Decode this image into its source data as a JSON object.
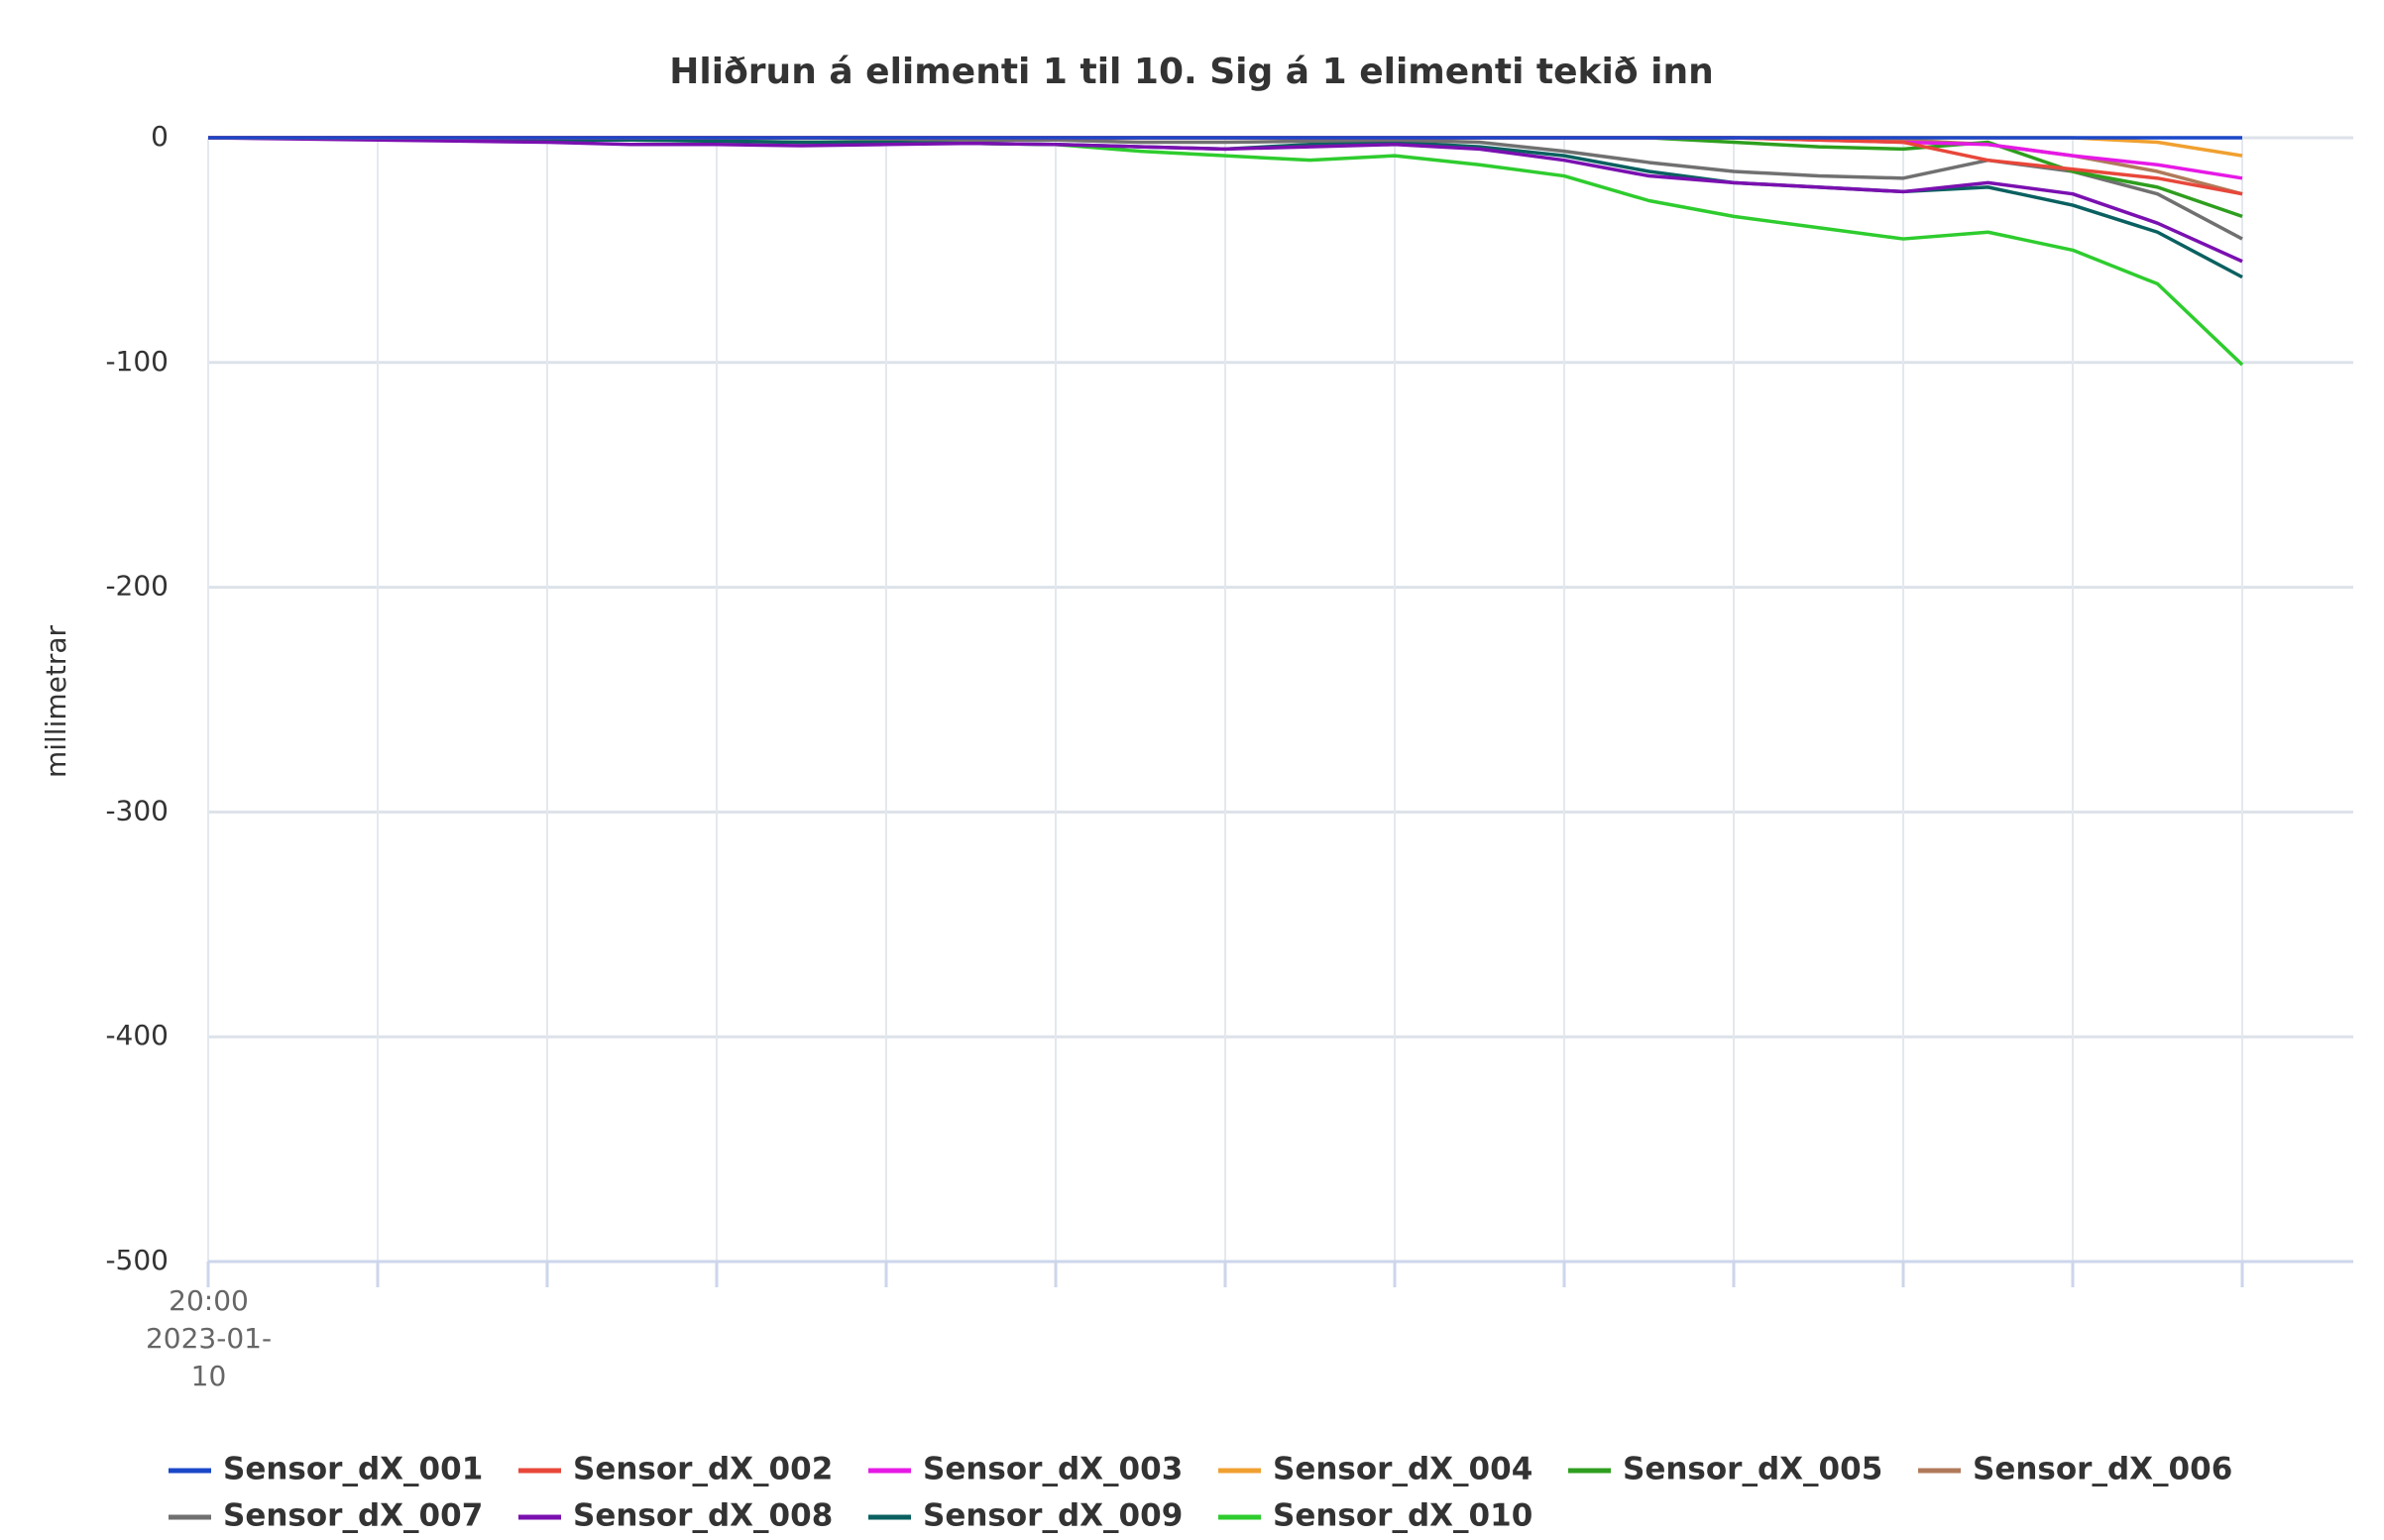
{
  "chart_data": {
    "type": "line",
    "title": "Hliðrun á elimenti 1 til 10. Sig á 1 elimenti tekið inn",
    "y_label": "millimetrar",
    "categories": [
      "20:00 2023-01-10",
      null,
      null,
      null,
      null,
      null,
      null,
      null,
      null,
      null,
      null,
      null,
      null,
      null,
      null,
      null,
      null,
      null,
      null,
      null,
      null,
      null,
      null,
      null,
      null
    ],
    "ylim": [
      -500,
      0
    ],
    "yticks": [
      0,
      -100,
      -200,
      -300,
      -400,
      -500
    ],
    "grid": true,
    "series": [
      {
        "name": "Sensor_dX_001",
        "color": "#1a47c8",
        "values": [
          0,
          0,
          0,
          0,
          0,
          0,
          0,
          0,
          0,
          0,
          0,
          0,
          0,
          0,
          0,
          0,
          0,
          0,
          0,
          0,
          0,
          0,
          0,
          0,
          0
        ]
      },
      {
        "name": "Sensor_dX_002",
        "color": "#e8473a",
        "values": [
          0,
          0,
          0,
          0,
          0,
          0,
          0,
          0,
          0,
          0,
          0,
          0,
          0,
          0,
          0,
          0,
          0,
          0,
          0,
          -1,
          -2,
          -10,
          -14,
          -18,
          -25
        ]
      },
      {
        "name": "Sensor_dX_003",
        "color": "#e619e6",
        "values": [
          0,
          0,
          0,
          0,
          0,
          0,
          0,
          0,
          0,
          0,
          0,
          0,
          0,
          0,
          0,
          0,
          0,
          0,
          0,
          -1,
          -2,
          -3,
          -8,
          -12,
          -18
        ]
      },
      {
        "name": "Sensor_dX_004",
        "color": "#f0a030",
        "values": [
          0,
          0,
          0,
          0,
          0,
          0,
          0,
          0,
          0,
          0,
          0,
          0,
          0,
          0,
          0,
          0,
          0,
          0,
          0,
          0,
          0,
          0,
          0,
          -2,
          -8
        ]
      },
      {
        "name": "Sensor_dX_005",
        "color": "#2e9e1e",
        "values": [
          0,
          0,
          0,
          0,
          0,
          0,
          0,
          0,
          0,
          0,
          0,
          0,
          0,
          0,
          0,
          0,
          0,
          0,
          -2,
          -4,
          -5,
          -2,
          -15,
          -22,
          -35
        ]
      },
      {
        "name": "Sensor_dX_006",
        "color": "#b07a5a",
        "values": [
          0,
          0,
          0,
          0,
          0,
          0,
          0,
          0,
          0,
          0,
          0,
          0,
          0,
          0,
          0,
          0,
          0,
          0,
          0,
          0,
          -1,
          -3,
          -8,
          -15,
          -25
        ]
      },
      {
        "name": "Sensor_dX_007",
        "color": "#707070",
        "values": [
          0,
          0,
          0,
          0,
          0,
          0,
          0,
          0,
          -0.5,
          -1,
          -1,
          -2,
          -2,
          -1.5,
          -1,
          -2,
          -6,
          -11,
          -15,
          -17,
          -18,
          -10,
          -15,
          -25,
          -45
        ]
      },
      {
        "name": "Sensor_dX_008",
        "color": "#7a10b0",
        "values": [
          0,
          -0.5,
          -1,
          -1.5,
          -2,
          -3,
          -3,
          -3.5,
          -3,
          -2.5,
          -3,
          -4,
          -5,
          -4,
          -3,
          -5,
          -10,
          -17,
          -20,
          -22,
          -24,
          -20,
          -25,
          -38,
          -55
        ]
      },
      {
        "name": "Sensor_dX_009",
        "color": "#0a6060",
        "values": [
          0,
          0,
          0,
          -0.5,
          -1,
          -1,
          -1.5,
          -2,
          -2,
          -2.5,
          -3,
          -4,
          -5,
          -3,
          -2,
          -4,
          -8,
          -15,
          -20,
          -22,
          -24,
          -22,
          -30,
          -42,
          -62
        ]
      },
      {
        "name": "Sensor_dX_010",
        "color": "#2ecc2e",
        "values": [
          0,
          0,
          0,
          -0.5,
          -1,
          -1,
          -1.5,
          -2,
          -2,
          -2.5,
          -3,
          -6,
          -8,
          -10,
          -8,
          -12,
          -17,
          -28,
          -35,
          -40,
          -45,
          -42,
          -50,
          -65,
          -101
        ]
      }
    ]
  }
}
